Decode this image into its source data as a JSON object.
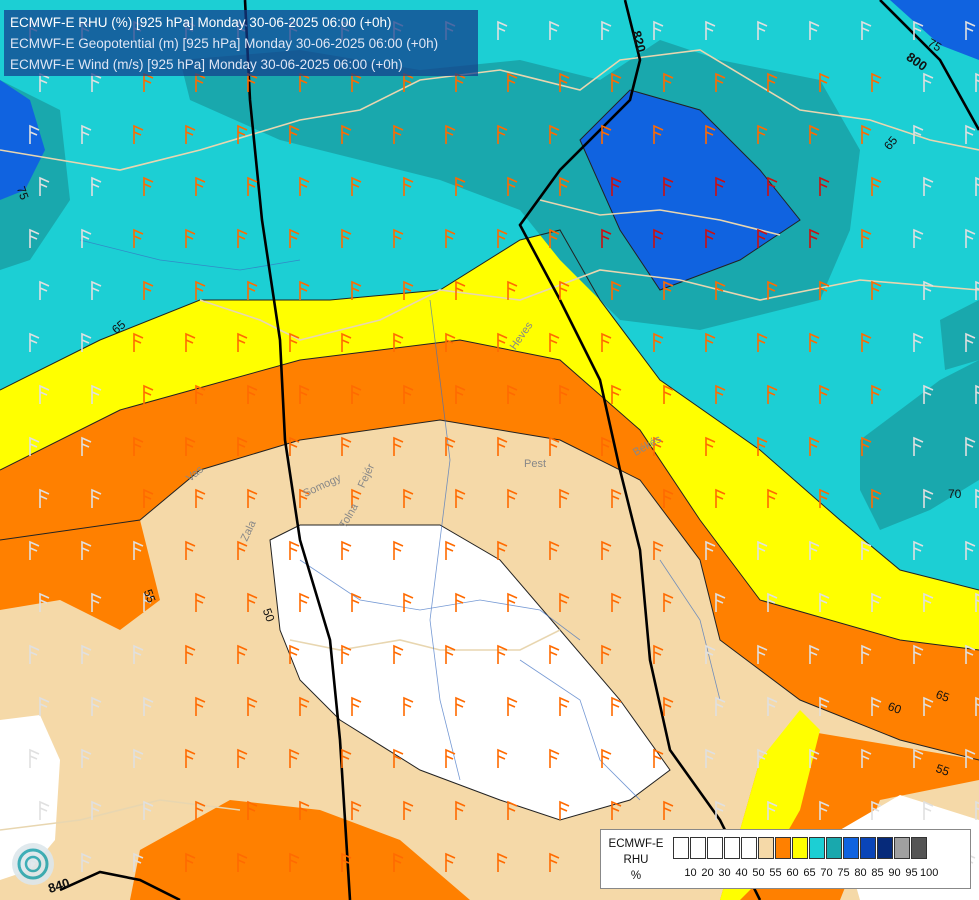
{
  "title": {
    "line1": "ECMWF-E RHU (%) [925 hPa] Monday 30-06-2025 06:00 (+0h)",
    "line2": "ECMWF-E Geopotential (m) [925 hPa] Monday 30-06-2025 06:00 (+0h)",
    "line3": "ECMWF-E Wind (m/s) [925 hPa] Monday 30-06-2025 06:00 (+0h)"
  },
  "legend": {
    "model": "ECMWF-E",
    "variable": "RHU",
    "unit": "%",
    "ticks": [
      "10",
      "20",
      "30",
      "40",
      "50",
      "55",
      "60",
      "65",
      "70",
      "75",
      "80",
      "85",
      "90",
      "95",
      "100"
    ],
    "colors": [
      "#ffffff",
      "#ffffff",
      "#ffffff",
      "#ffffff",
      "#ffffff",
      "#f5d9a8",
      "#ff8000",
      "#ffff00",
      "#1ccfd4",
      "#19a8ad",
      "#1063e0",
      "#0a45b8",
      "#062a7a",
      "#a0a0a0",
      "#555555"
    ]
  },
  "geopotential_labels": {
    "a": "820",
    "b": "800",
    "c": "840"
  },
  "rhu_labels": {
    "l65a": "65",
    "l75a": "75",
    "l75b": "75",
    "l65b": "65",
    "l70": "70",
    "l55a": "55",
    "l50": "50",
    "l60": "60",
    "l55b": "55",
    "l65c": "65"
  },
  "places": {
    "heves": "Heves",
    "bekes": "Békés",
    "pest": "Pest",
    "somogy": "Somogy",
    "tolna": "Tolna",
    "fejer": "Fejér",
    "zala": "Zala",
    "vas": "Vas"
  }
}
